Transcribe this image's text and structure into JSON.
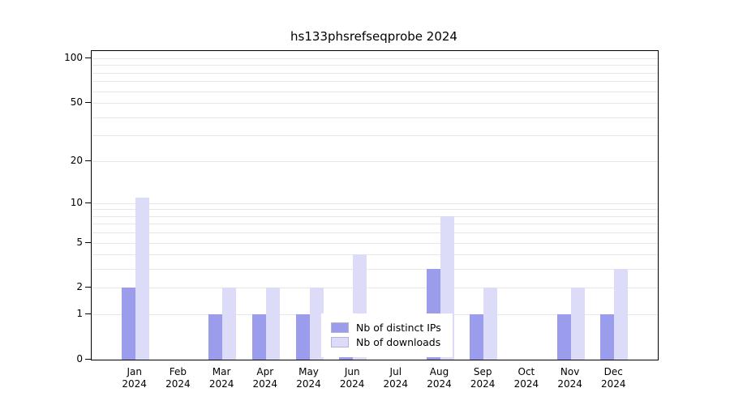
{
  "chart_data": {
    "type": "bar",
    "title": "hs133phsrefseqprobe 2024",
    "categories": [
      "Jan",
      "Feb",
      "Mar",
      "Apr",
      "May",
      "Jun",
      "Jul",
      "Aug",
      "Sep",
      "Oct",
      "Nov",
      "Dec"
    ],
    "year_label": "2024",
    "series": [
      {
        "name": "Nb of distinct IPs",
        "color": "#9c9cec",
        "values": [
          2,
          0,
          1,
          1,
          1,
          1,
          0,
          3,
          1,
          0,
          1,
          1
        ]
      },
      {
        "name": "Nb of downloads",
        "color": "#dcdcf8",
        "values": [
          11,
          0,
          2,
          2,
          2,
          4,
          0,
          8,
          2,
          0,
          2,
          3
        ]
      }
    ],
    "y_scale": "log1p",
    "ylim": [
      0,
      100
    ],
    "y_ticks": [
      0,
      1,
      2,
      5,
      10,
      20,
      50,
      100
    ],
    "y_grid_values": [
      1,
      2,
      3,
      4,
      5,
      6,
      7,
      8,
      9,
      10,
      20,
      30,
      40,
      50,
      60,
      70,
      80,
      90,
      100
    ],
    "legend_position": "bottom-center",
    "grid": "horizontal"
  }
}
